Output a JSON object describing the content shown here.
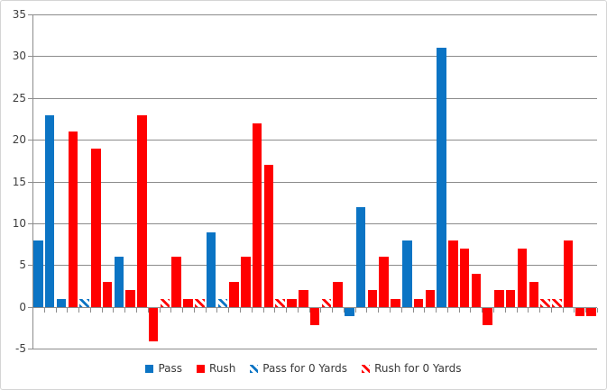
{
  "chart_data": {
    "type": "bar",
    "title": "",
    "xlabel": "",
    "ylabel": "",
    "ylim": [
      -5,
      35
    ],
    "yticks": [
      35,
      30,
      25,
      20,
      15,
      10,
      5,
      0,
      -5
    ],
    "grid": true,
    "legend_position": "bottom",
    "series": [
      {
        "key": "pass",
        "name": "Pass",
        "color": "#0B74C4",
        "pattern": "solid"
      },
      {
        "key": "rush",
        "name": "Rush",
        "color": "#FF0000",
        "pattern": "solid"
      },
      {
        "key": "pass0",
        "name": "Pass for 0 Yards",
        "color": "#0B74C4",
        "pattern": "hatch"
      },
      {
        "key": "rush0",
        "name": "Rush for 0 Yards",
        "color": "#FF0000",
        "pattern": "hatch"
      }
    ],
    "bars": [
      {
        "series": "pass",
        "value": 8
      },
      {
        "series": "pass",
        "value": 23
      },
      {
        "series": "pass",
        "value": 1
      },
      {
        "series": "rush",
        "value": 21
      },
      {
        "series": "pass0",
        "value": 1
      },
      {
        "series": "rush",
        "value": 19
      },
      {
        "series": "rush",
        "value": 3
      },
      {
        "series": "pass",
        "value": 6
      },
      {
        "series": "rush",
        "value": 2
      },
      {
        "series": "rush",
        "value": 23
      },
      {
        "series": "rush",
        "value": -4
      },
      {
        "series": "rush0",
        "value": 1
      },
      {
        "series": "rush",
        "value": 6
      },
      {
        "series": "rush",
        "value": 1
      },
      {
        "series": "rush0",
        "value": 1
      },
      {
        "series": "pass",
        "value": 9
      },
      {
        "series": "pass0",
        "value": 1
      },
      {
        "series": "rush",
        "value": 3
      },
      {
        "series": "rush",
        "value": 6
      },
      {
        "series": "rush",
        "value": 22
      },
      {
        "series": "rush",
        "value": 17
      },
      {
        "series": "rush0",
        "value": 1
      },
      {
        "series": "rush",
        "value": 1
      },
      {
        "series": "rush",
        "value": 2
      },
      {
        "series": "rush",
        "value": -2
      },
      {
        "series": "rush0",
        "value": 1
      },
      {
        "series": "rush",
        "value": 3
      },
      {
        "series": "pass",
        "value": -1
      },
      {
        "series": "pass",
        "value": 12
      },
      {
        "series": "rush",
        "value": 2
      },
      {
        "series": "rush",
        "value": 6
      },
      {
        "series": "rush",
        "value": 1
      },
      {
        "series": "pass",
        "value": 8
      },
      {
        "series": "rush",
        "value": 1
      },
      {
        "series": "rush",
        "value": 2
      },
      {
        "series": "pass",
        "value": 31
      },
      {
        "series": "rush",
        "value": 8
      },
      {
        "series": "rush",
        "value": 7
      },
      {
        "series": "rush",
        "value": 4
      },
      {
        "series": "rush",
        "value": -2
      },
      {
        "series": "rush",
        "value": 2
      },
      {
        "series": "rush",
        "value": 2
      },
      {
        "series": "rush",
        "value": 7
      },
      {
        "series": "rush",
        "value": 3
      },
      {
        "series": "rush0",
        "value": 1
      },
      {
        "series": "rush0",
        "value": 1
      },
      {
        "series": "rush",
        "value": 8
      },
      {
        "series": "rush",
        "value": -1
      },
      {
        "series": "rush",
        "value": -1
      }
    ],
    "colors": {
      "gridline": "#8C8C8C",
      "axis": "#8C8C8C",
      "tick": "#8C8C8C",
      "label": "#3F3F3F",
      "frame_border": "#D5D5D5",
      "background": "#FFFFFF"
    }
  }
}
